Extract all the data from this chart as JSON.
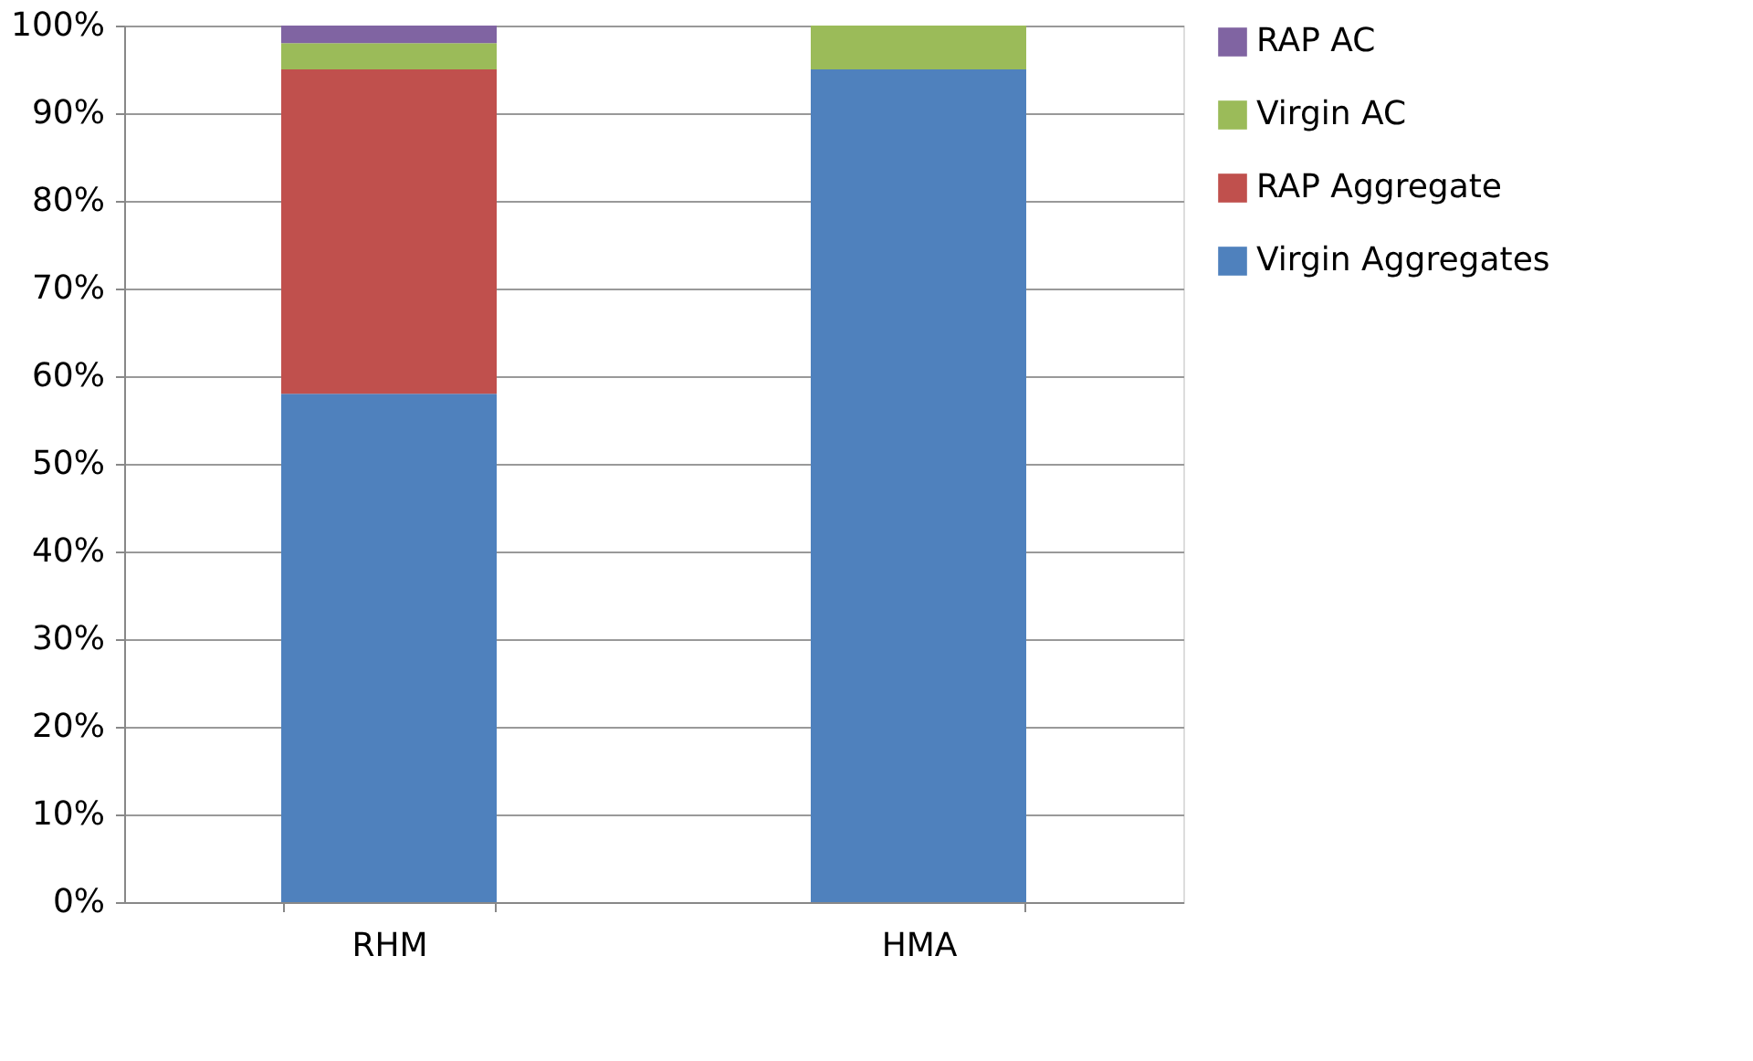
{
  "chart_data": {
    "type": "bar",
    "stacked": true,
    "categories": [
      "RHM",
      "HMA"
    ],
    "series": [
      {
        "name": "Virgin Aggregates",
        "color": "#4f81bd",
        "values": [
          58,
          95
        ]
      },
      {
        "name": "RAP Aggregate",
        "color": "#c0504d",
        "values": [
          37,
          0
        ]
      },
      {
        "name": "Virgin AC",
        "color": "#9bbb59",
        "values": [
          3,
          5
        ]
      },
      {
        "name": "RAP AC",
        "color": "#8064a2",
        "values": [
          2,
          0
        ]
      }
    ],
    "ylim": [
      0,
      100
    ],
    "yticks": [
      {
        "value": 0,
        "label": "0%"
      },
      {
        "value": 10,
        "label": "10%"
      },
      {
        "value": 20,
        "label": "20%"
      },
      {
        "value": 30,
        "label": "30%"
      },
      {
        "value": 40,
        "label": "40%"
      },
      {
        "value": 50,
        "label": "50%"
      },
      {
        "value": 60,
        "label": "60%"
      },
      {
        "value": 70,
        "label": "70%"
      },
      {
        "value": 80,
        "label": "80%"
      },
      {
        "value": 90,
        "label": "90%"
      },
      {
        "value": 100,
        "label": "100%"
      }
    ],
    "grid": "y",
    "legend": "right"
  }
}
